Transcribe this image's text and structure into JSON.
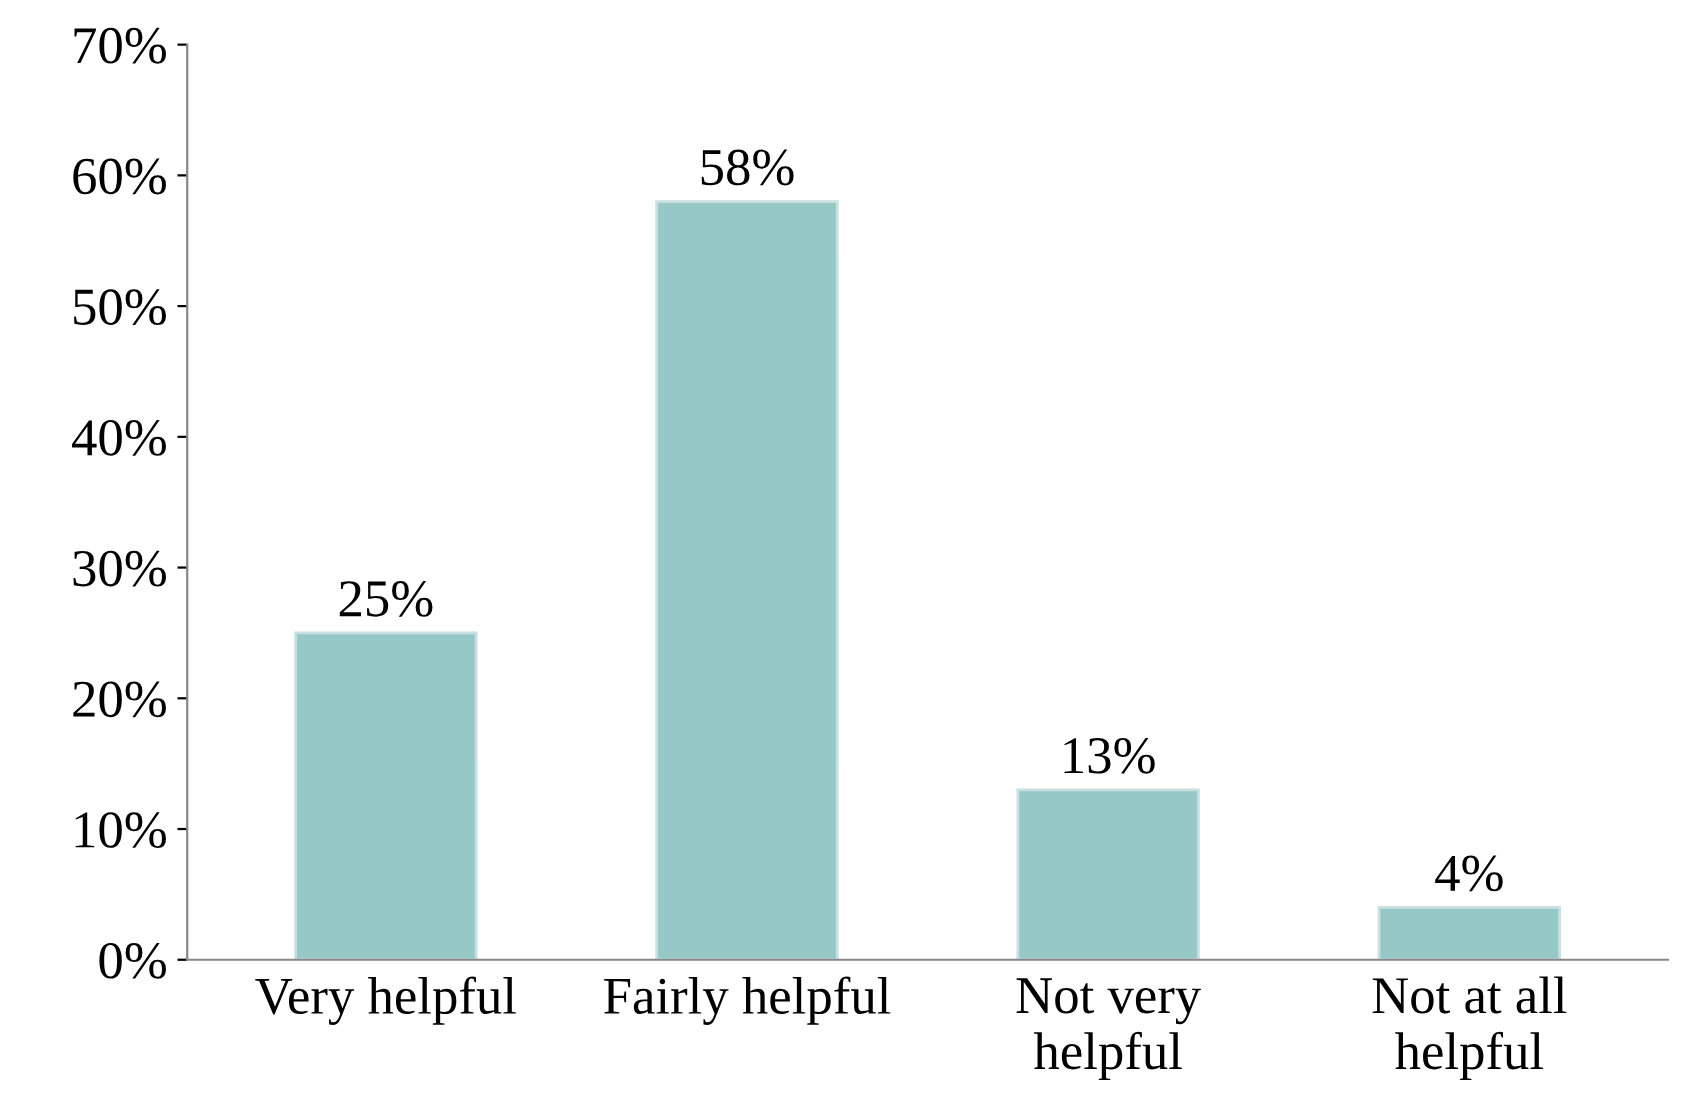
{
  "chart_data": {
    "type": "bar",
    "categories": [
      "Very helpful",
      "Fairly helpful",
      "Not very helpful",
      "Not at all helpful"
    ],
    "values": [
      25,
      58,
      13,
      4
    ],
    "value_labels": [
      "25%",
      "58%",
      "13%",
      "4%"
    ],
    "color": "#96c8c8",
    "ylim": [
      0,
      70
    ],
    "yticks": [
      {
        "value": 0,
        "label": "0%"
      },
      {
        "value": 10,
        "label": "10%"
      },
      {
        "value": 20,
        "label": "20%"
      },
      {
        "value": 30,
        "label": "30%"
      },
      {
        "value": 40,
        "label": "40%"
      },
      {
        "value": 50,
        "label": "50%"
      },
      {
        "value": 60,
        "label": "60%"
      },
      {
        "value": 70,
        "label": "70%"
      }
    ],
    "grid": false
  }
}
